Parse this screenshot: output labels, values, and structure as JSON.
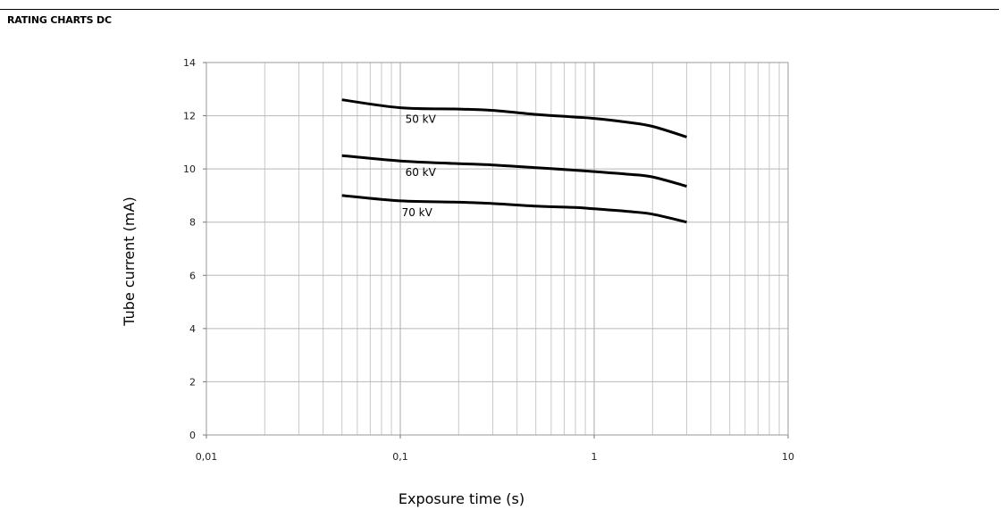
{
  "page": {
    "title": "RATING CHARTS DC"
  },
  "chart_data": {
    "type": "line",
    "title": "",
    "xlabel": "Exposure time (s)",
    "ylabel": "Tube current (mA)",
    "x_scale": "log",
    "xlim": [
      0.01,
      10
    ],
    "ylim": [
      0,
      14
    ],
    "x_ticks": [
      0.01,
      0.1,
      1,
      10
    ],
    "x_tick_labels": [
      "0,01",
      "0,1",
      "1",
      "10"
    ],
    "y_ticks": [
      0,
      2,
      4,
      6,
      8,
      10,
      12,
      14
    ],
    "y_tick_labels": [
      "0",
      "2",
      "4",
      "6",
      "8",
      "10",
      "12",
      "14"
    ],
    "grid": true,
    "legend": "none",
    "line_color": "#000000",
    "series": [
      {
        "name": "50 kV",
        "x": [
          0.05,
          0.1,
          0.2,
          0.3,
          0.5,
          0.8,
          1.0,
          1.5,
          2.0,
          3.0
        ],
        "y": [
          12.6,
          12.3,
          12.25,
          12.2,
          12.05,
          11.95,
          11.9,
          11.75,
          11.6,
          11.2
        ]
      },
      {
        "name": "60 kV",
        "x": [
          0.05,
          0.1,
          0.2,
          0.3,
          0.5,
          0.8,
          1.0,
          1.5,
          2.0,
          3.0
        ],
        "y": [
          10.5,
          10.3,
          10.2,
          10.15,
          10.05,
          9.95,
          9.9,
          9.8,
          9.7,
          9.35
        ]
      },
      {
        "name": "70 kV",
        "x": [
          0.05,
          0.1,
          0.2,
          0.3,
          0.5,
          0.8,
          1.0,
          1.5,
          2.0,
          3.0
        ],
        "y": [
          9.0,
          8.8,
          8.75,
          8.7,
          8.6,
          8.55,
          8.5,
          8.4,
          8.3,
          8.0
        ]
      }
    ]
  }
}
